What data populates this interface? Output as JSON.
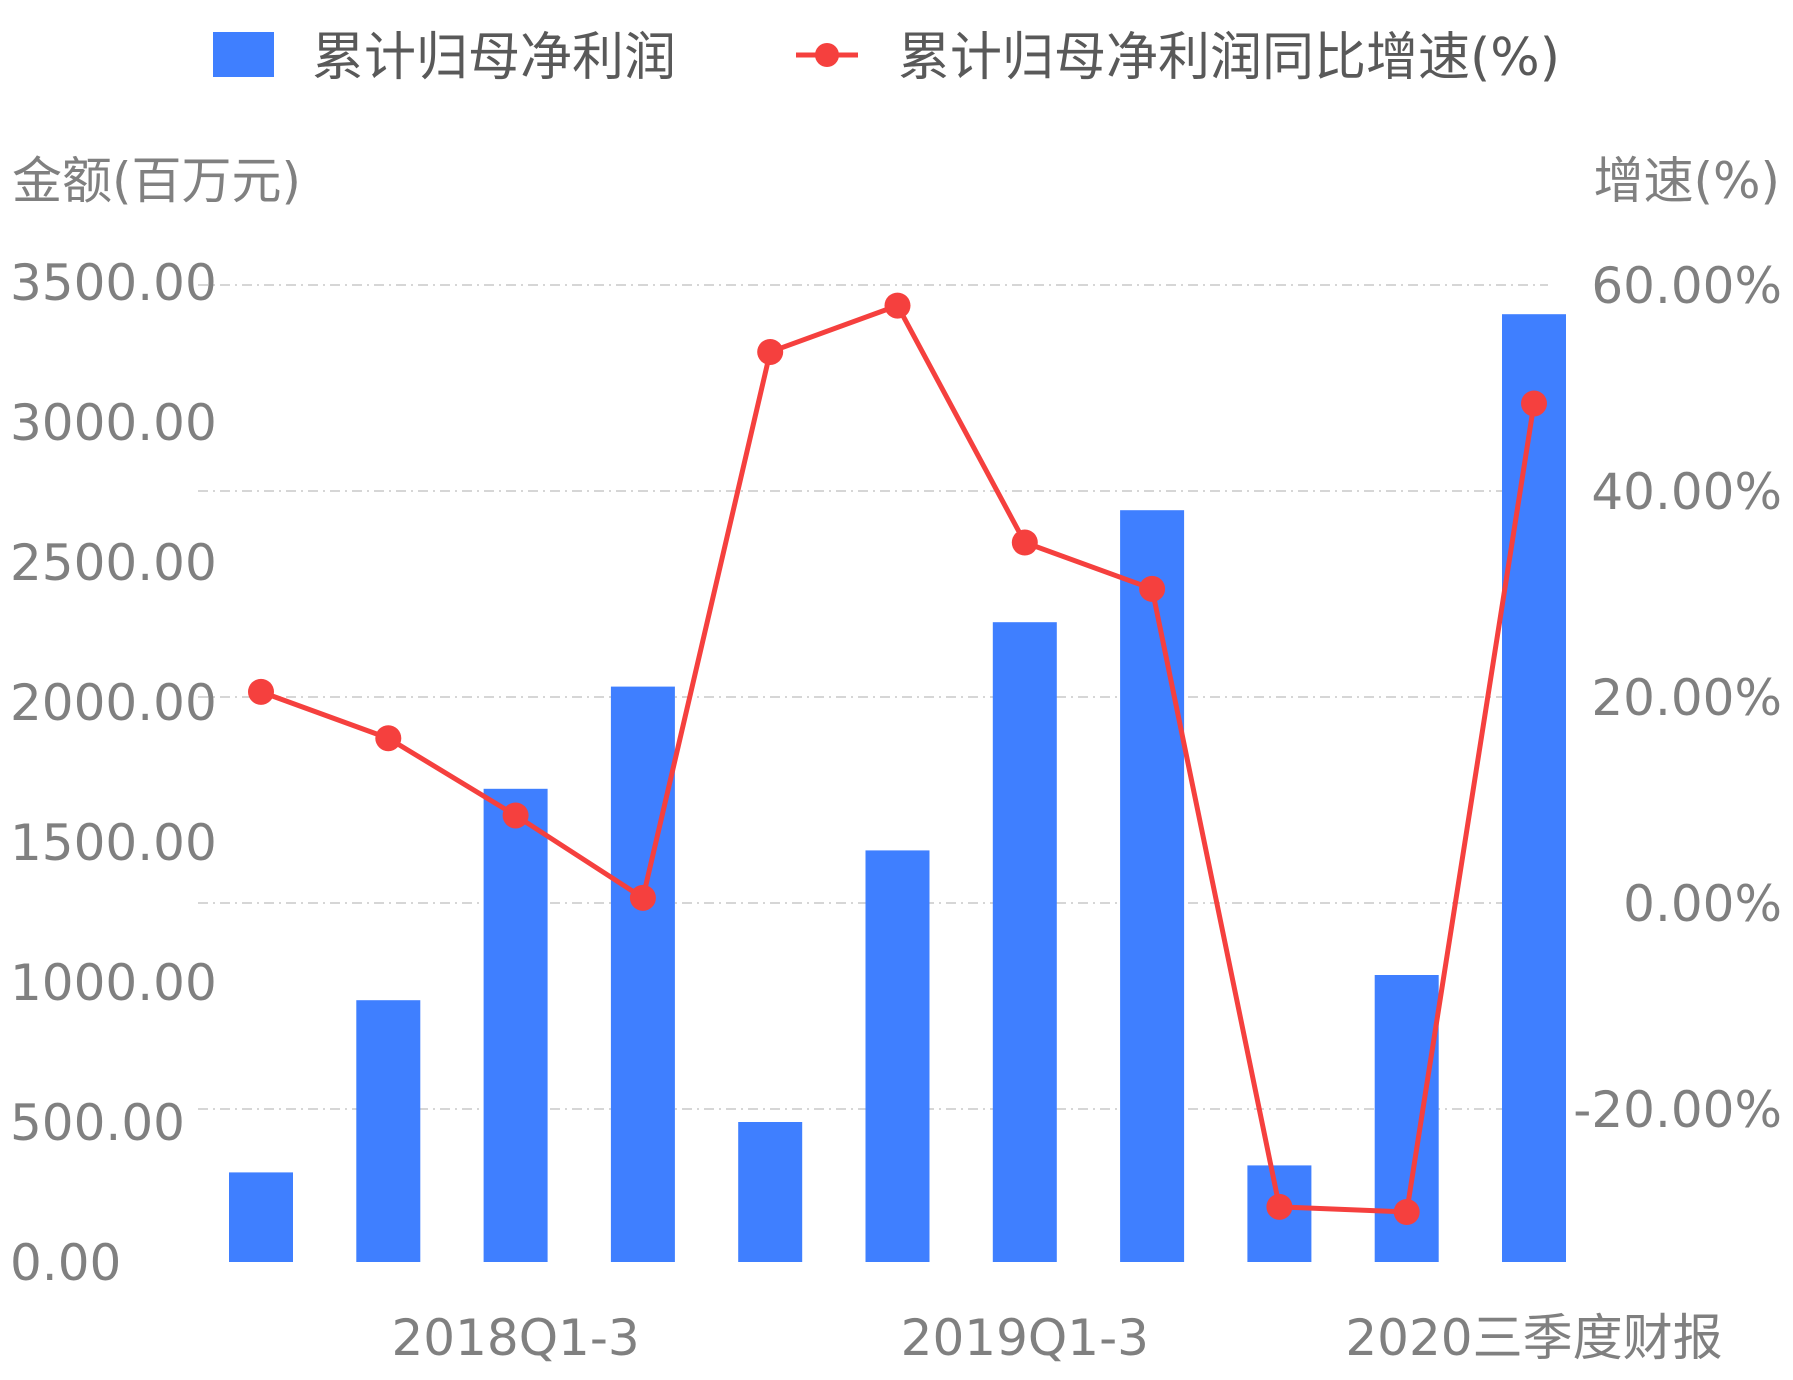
{
  "chart_data": {
    "type": "bar+line",
    "legend": {
      "placement": "top-center",
      "bar_label": "累计归母净利润",
      "line_label": "累计归母净利润同比增速(%)"
    },
    "y_left": {
      "title": "金额(百万元)",
      "ticks": [
        "0.00",
        "500.00",
        "1000.00",
        "1500.00",
        "2000.00",
        "2500.00",
        "3000.00",
        "3500.00"
      ],
      "range": [
        0,
        3500
      ]
    },
    "y_right": {
      "title": "增速(%)",
      "ticks": [
        "-20.00%",
        "0.00%",
        "20.00%",
        "40.00%",
        "60.00%"
      ],
      "range": [
        -35,
        60
      ]
    },
    "x_tick_labels": [
      {
        "index": 2,
        "label": "2018Q1-3"
      },
      {
        "index": 6,
        "label": "2019Q1-3"
      },
      {
        "index": 10,
        "label": "2020三季度财报"
      }
    ],
    "bar_values": [
      320,
      935,
      1690,
      2055,
      500,
      1470,
      2285,
      2685,
      345,
      1025,
      3385
    ],
    "line_values": [
      20.5,
      16.0,
      8.5,
      0.5,
      53.5,
      58.0,
      35.0,
      30.5,
      -29.5,
      -30.0,
      48.5
    ],
    "grid": true,
    "colors": {
      "bar": "#3f7fff",
      "line": "#f5403e"
    }
  }
}
